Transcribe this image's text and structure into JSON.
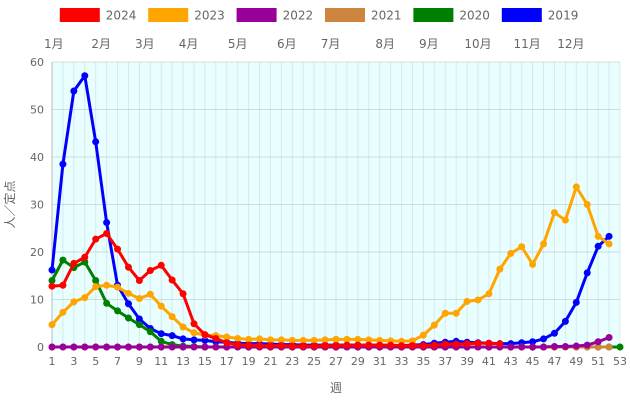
{
  "chart_data": {
    "type": "line",
    "xlabel": "週",
    "ylabel": "人／定点",
    "xlim": [
      1,
      53
    ],
    "ylim": [
      0,
      60
    ],
    "y_ticks": [
      0,
      10,
      20,
      30,
      40,
      50,
      60
    ],
    "x_ticks": [
      1,
      3,
      5,
      7,
      9,
      11,
      13,
      15,
      17,
      19,
      21,
      23,
      25,
      27,
      29,
      31,
      33,
      35,
      37,
      39,
      41,
      43,
      45,
      47,
      49,
      51,
      53
    ],
    "grid": true,
    "plot_background": "#e8feff",
    "legend_position": "top",
    "months": [
      {
        "label": "1月",
        "week": 1
      },
      {
        "label": "2月",
        "week": 5.5
      },
      {
        "label": "3月",
        "week": 9.5
      },
      {
        "label": "4月",
        "week": 13.5
      },
      {
        "label": "5月",
        "week": 18
      },
      {
        "label": "6月",
        "week": 22.5
      },
      {
        "label": "7月",
        "week": 26.5
      },
      {
        "label": "8月",
        "week": 31.5
      },
      {
        "label": "9月",
        "week": 35.5
      },
      {
        "label": "10月",
        "week": 40
      },
      {
        "label": "11月",
        "week": 44.5
      },
      {
        "label": "12月",
        "week": 48.5
      }
    ],
    "series": [
      {
        "name": "2024",
        "color": "#ff0000",
        "x": [
          1,
          2,
          3,
          4,
          5,
          6,
          7,
          8,
          9,
          10,
          11,
          12,
          13,
          14,
          15,
          16,
          17,
          18,
          19,
          20,
          21,
          22,
          23,
          24,
          25,
          26,
          27,
          28,
          29,
          30,
          31,
          32,
          33,
          34,
          35,
          36,
          37,
          38,
          39,
          40,
          41,
          42
        ],
        "y": [
          12.8,
          13.0,
          17.6,
          18.9,
          22.7,
          23.9,
          20.6,
          16.8,
          14.0,
          16.1,
          17.2,
          14.1,
          11.2,
          4.9,
          2.6,
          1.8,
          0.9,
          0.5,
          0.4,
          0.3,
          0.3,
          0.3,
          0.2,
          0.2,
          0.2,
          0.3,
          0.3,
          0.4,
          0.4,
          0.4,
          0.4,
          0.4,
          0.3,
          0.3,
          0.3,
          0.4,
          0.6,
          0.6,
          0.7,
          0.8,
          0.8,
          0.7
        ]
      },
      {
        "name": "2023",
        "color": "#ffa500",
        "x": [
          1,
          2,
          3,
          4,
          5,
          6,
          7,
          8,
          9,
          10,
          11,
          12,
          13,
          14,
          15,
          16,
          17,
          18,
          19,
          20,
          21,
          22,
          23,
          24,
          25,
          26,
          27,
          28,
          29,
          30,
          31,
          32,
          33,
          34,
          35,
          36,
          37,
          38,
          39,
          40,
          41,
          42,
          43,
          44,
          45,
          46,
          47,
          48,
          49,
          50,
          51,
          52
        ],
        "y": [
          4.7,
          7.3,
          9.5,
          10.4,
          12.7,
          13.0,
          12.6,
          11.3,
          10.2,
          11.1,
          8.6,
          6.4,
          4.2,
          3.0,
          2.5,
          2.4,
          2.1,
          1.8,
          1.6,
          1.7,
          1.5,
          1.5,
          1.4,
          1.4,
          1.4,
          1.5,
          1.6,
          1.6,
          1.6,
          1.5,
          1.4,
          1.3,
          1.2,
          1.3,
          2.5,
          4.6,
          7.1,
          7.1,
          9.6,
          9.9,
          11.2,
          16.4,
          19.7,
          21.1,
          17.4,
          21.7,
          28.3,
          26.7,
          33.7,
          30.0,
          23.3,
          21.7
        ]
      },
      {
        "name": "2022",
        "color": "#990099",
        "x": [
          1,
          2,
          3,
          4,
          5,
          6,
          7,
          8,
          9,
          10,
          11,
          12,
          13,
          14,
          15,
          16,
          17,
          18,
          19,
          20,
          21,
          22,
          23,
          24,
          25,
          26,
          27,
          28,
          29,
          30,
          31,
          32,
          33,
          34,
          35,
          36,
          37,
          38,
          39,
          40,
          41,
          42,
          43,
          44,
          45,
          46,
          47,
          48,
          49,
          50,
          51,
          52
        ],
        "y": [
          0,
          0,
          0,
          0,
          0,
          0,
          0,
          0,
          0,
          0,
          0,
          0,
          0,
          0,
          0,
          0,
          0,
          0,
          0,
          0,
          0,
          0,
          0,
          0,
          0,
          0,
          0,
          0,
          0,
          0,
          0,
          0,
          0,
          0,
          0,
          0,
          0,
          0,
          0,
          0,
          0,
          0,
          0,
          0,
          0,
          0,
          0.1,
          0.1,
          0.2,
          0.4,
          1.1,
          2.0
        ]
      },
      {
        "name": "2021",
        "color": "#cd853f",
        "x": [
          1,
          2,
          3,
          4,
          5,
          6,
          7,
          8,
          9,
          10,
          11,
          12,
          13,
          14,
          15,
          16,
          17,
          18,
          19,
          20,
          21,
          22,
          23,
          24,
          25,
          26,
          27,
          28,
          29,
          30,
          31,
          32,
          33,
          34,
          35,
          36,
          37,
          38,
          39,
          40,
          41,
          42,
          43,
          44,
          45,
          46,
          47,
          48,
          49,
          50,
          51,
          52
        ],
        "y": [
          0,
          0,
          0,
          0,
          0,
          0,
          0,
          0,
          0,
          0,
          0,
          0,
          0,
          0,
          0,
          0,
          0,
          0,
          0,
          0,
          0,
          0,
          0,
          0,
          0,
          0,
          0,
          0,
          0,
          0,
          0,
          0,
          0,
          0,
          0,
          0,
          0,
          0,
          0,
          0,
          0,
          0,
          0,
          0,
          0,
          0,
          0,
          0,
          0,
          0,
          0,
          0
        ]
      },
      {
        "name": "2020",
        "color": "#008000",
        "x": [
          1,
          2,
          3,
          4,
          5,
          6,
          7,
          8,
          9,
          10,
          11,
          12,
          13,
          14,
          15,
          16,
          17,
          18,
          19,
          20,
          21,
          22,
          23,
          24,
          25,
          26,
          27,
          28,
          29,
          30,
          31,
          32,
          33,
          34,
          35,
          36,
          37,
          38,
          39,
          40,
          41,
          42,
          43,
          44,
          45,
          46,
          47,
          48,
          49,
          50,
          51,
          52,
          53
        ],
        "y": [
          14.0,
          18.3,
          16.7,
          17.9,
          14.0,
          9.2,
          7.6,
          6.1,
          4.7,
          3.2,
          1.2,
          0.5,
          0.2,
          0.1,
          0,
          0,
          0,
          0,
          0,
          0,
          0,
          0,
          0,
          0,
          0,
          0,
          0,
          0,
          0,
          0,
          0,
          0,
          0,
          0,
          0,
          0,
          0,
          0,
          0,
          0,
          0,
          0,
          0,
          0,
          0,
          0,
          0,
          0,
          0,
          0,
          0,
          0,
          0
        ]
      },
      {
        "name": "2019",
        "color": "#0000ff",
        "x": [
          1,
          2,
          3,
          4,
          5,
          6,
          7,
          8,
          9,
          10,
          11,
          12,
          13,
          14,
          15,
          16,
          17,
          18,
          19,
          20,
          21,
          22,
          23,
          24,
          25,
          26,
          27,
          28,
          29,
          30,
          31,
          32,
          33,
          34,
          35,
          36,
          37,
          38,
          39,
          40,
          41,
          42,
          43,
          44,
          45,
          46,
          47,
          48,
          49,
          50,
          51,
          52
        ],
        "y": [
          16.2,
          38.5,
          53.9,
          57.1,
          43.2,
          26.2,
          13.0,
          9.1,
          5.9,
          3.9,
          2.8,
          2.4,
          1.7,
          1.5,
          1.4,
          1.1,
          1.0,
          0.8,
          0.7,
          0.7,
          0.6,
          0.5,
          0.5,
          0.4,
          0.4,
          0.4,
          0.4,
          0.4,
          0.4,
          0.4,
          0.4,
          0.3,
          0.3,
          0.4,
          0.5,
          0.8,
          1.0,
          1.2,
          1.0,
          0.9,
          0.8,
          0.7,
          0.7,
          0.9,
          1.1,
          1.7,
          2.9,
          5.4,
          9.4,
          15.6,
          21.2,
          23.3
        ]
      }
    ]
  }
}
